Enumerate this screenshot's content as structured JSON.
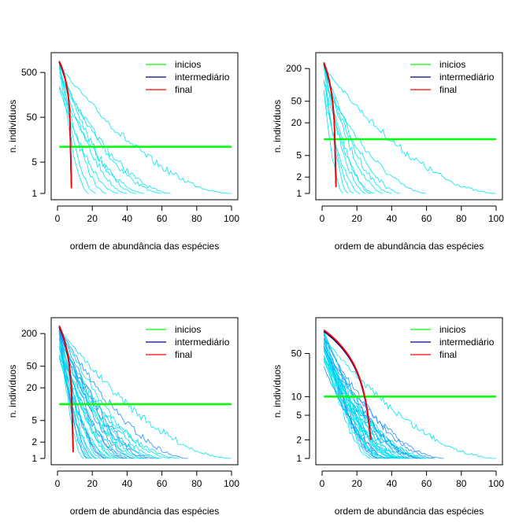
{
  "colors": {
    "inicial": "#00ff00",
    "intermediario": "#00008b",
    "final": "#ff0000",
    "curves": "#00e5ee",
    "curves_dark": "#1e90ff"
  },
  "chart_data": [
    {
      "type": "line",
      "panel": "top-left",
      "xlabel": "ordem de abundância das espécies",
      "ylabel": "n. indivíduos",
      "log_y": true,
      "xlim": [
        0,
        100
      ],
      "ylim": [
        1,
        1000
      ],
      "xticks": [
        "0",
        "20",
        "40",
        "60",
        "80",
        "100"
      ],
      "yticks": [
        {
          "v": 1,
          "label": "1"
        },
        {
          "v": 5,
          "label": "5"
        },
        {
          "v": 50,
          "label": "50"
        },
        {
          "v": 500,
          "label": "500"
        }
      ],
      "legend": [
        "inicios",
        "intermediário",
        "final"
      ],
      "hline": 11,
      "n_thin": 10,
      "thin_max_rank": [
        35,
        60,
        45,
        50,
        65,
        22,
        18,
        28,
        40,
        100
      ],
      "first_value": 900
    },
    {
      "type": "line",
      "panel": "top-right",
      "xlabel": "ordem de abundância das espécies",
      "ylabel": "n. indivíduos",
      "log_y": true,
      "xlim": [
        0,
        100
      ],
      "ylim": [
        1,
        300
      ],
      "xticks": [
        "0",
        "20",
        "40",
        "60",
        "80",
        "100"
      ],
      "yticks": [
        {
          "v": 1,
          "label": "1"
        },
        {
          "v": 2,
          "label": "2"
        },
        {
          "v": 5,
          "label": "5"
        },
        {
          "v": 20,
          "label": "20"
        },
        {
          "v": 50,
          "label": "50"
        },
        {
          "v": 200,
          "label": "200"
        }
      ],
      "legend": [
        "inicios",
        "intermediário",
        "final"
      ],
      "hline": 10,
      "n_thin": 12,
      "thin_max_rank": [
        60,
        100,
        40,
        35,
        30,
        25,
        18,
        15,
        12,
        22,
        28,
        45
      ],
      "first_value": 260
    },
    {
      "type": "line",
      "panel": "bottom-left",
      "xlabel": "ordem de abundância das espécies",
      "ylabel": "n. indivíduos",
      "log_y": true,
      "xlim": [
        0,
        100
      ],
      "ylim": [
        1,
        300
      ],
      "xticks": [
        "0",
        "20",
        "40",
        "60",
        "80",
        "100"
      ],
      "yticks": [
        {
          "v": 1,
          "label": "1"
        },
        {
          "v": 2,
          "label": "2"
        },
        {
          "v": 5,
          "label": "5"
        },
        {
          "v": 20,
          "label": "20"
        },
        {
          "v": 50,
          "label": "50"
        },
        {
          "v": 200,
          "label": "200"
        }
      ],
      "legend": [
        "inicios",
        "intermediário",
        "final"
      ],
      "hline": 10,
      "n_thin": 30,
      "thin_max_rank": [
        75,
        100,
        60,
        55,
        50,
        45,
        40,
        35,
        30,
        28,
        25,
        22,
        20,
        18,
        15,
        38,
        42,
        48,
        52,
        58,
        33,
        27,
        23,
        19,
        17,
        65,
        70,
        44,
        36,
        31
      ],
      "first_value": 280
    },
    {
      "type": "line",
      "panel": "bottom-right",
      "xlabel": "ordem de abundância das espécies",
      "ylabel": "n. indivíduos",
      "log_y": true,
      "xlim": [
        0,
        100
      ],
      "ylim": [
        1,
        150
      ],
      "xticks": [
        "0",
        "20",
        "40",
        "60",
        "80",
        "100"
      ],
      "yticks": [
        {
          "v": 1,
          "label": "1"
        },
        {
          "v": 2,
          "label": "2"
        },
        {
          "v": 5,
          "label": "5"
        },
        {
          "v": 10,
          "label": "10"
        },
        {
          "v": 50,
          "label": "50"
        }
      ],
      "legend": [
        "inicios",
        "intermediário",
        "final"
      ],
      "hline": 10,
      "n_thin": 30,
      "thin_max_rank": [
        70,
        100,
        60,
        55,
        50,
        48,
        45,
        42,
        40,
        38,
        36,
        34,
        32,
        30,
        28,
        52,
        58,
        62,
        65,
        44,
        41,
        39,
        37,
        35,
        33,
        47,
        53,
        57,
        46,
        43
      ],
      "first_value": 120
    }
  ]
}
